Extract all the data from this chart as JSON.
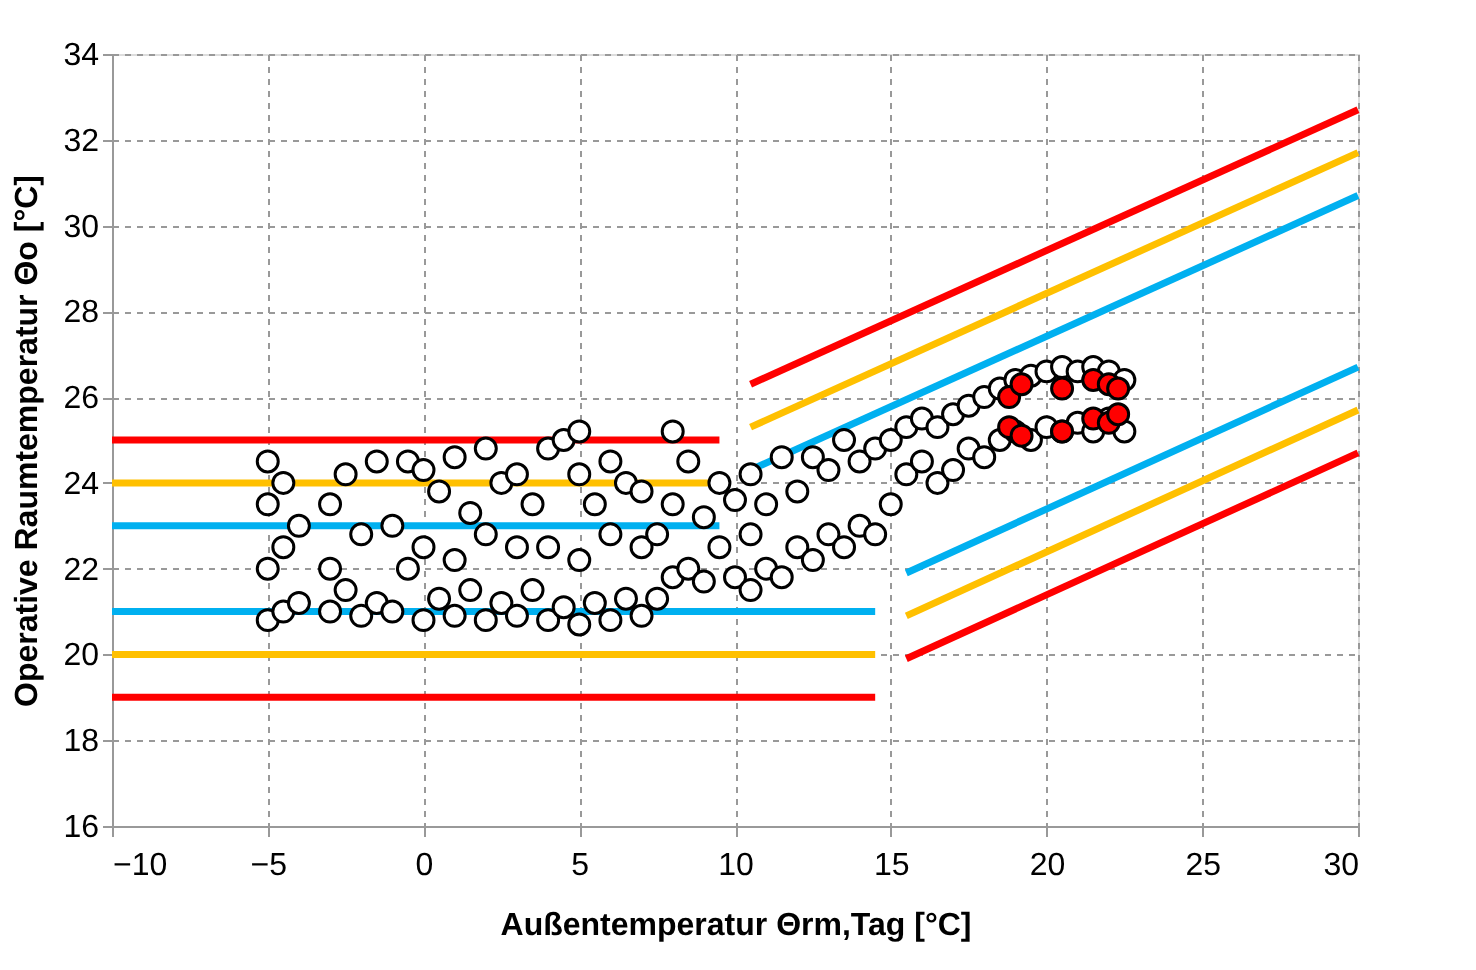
{
  "chart_data": {
    "type": "scatter",
    "xlabel": "Außentemperatur Θrm,Tag [°C]",
    "ylabel": "Operative Raumtemperatur Θo [°C]",
    "xlim": [
      -10,
      30
    ],
    "xticks": [
      -10,
      -5,
      0,
      5,
      10,
      15,
      20,
      25,
      30
    ],
    "ylim": [
      16,
      34
    ],
    "yticks": [
      16,
      18,
      20,
      22,
      24,
      26,
      28,
      30,
      32,
      34
    ],
    "grid": true,
    "marker": "circle",
    "series": [
      {
        "type": "line",
        "color": "#ff0000",
        "x": [
          -10,
          9.5
        ],
        "values": [
          25,
          25
        ],
        "marker": "none"
      },
      {
        "type": "line",
        "color": "#ffc000",
        "x": [
          -10,
          9.5
        ],
        "values": [
          24,
          24
        ],
        "marker": "none"
      },
      {
        "type": "line",
        "color": "#00b0f0",
        "x": [
          -10,
          9.5
        ],
        "values": [
          23,
          23
        ],
        "marker": "none"
      },
      {
        "type": "line",
        "color": "#00b0f0",
        "x": [
          -10,
          14.5
        ],
        "values": [
          21,
          21
        ],
        "marker": "none"
      },
      {
        "type": "line",
        "color": "#ffc000",
        "x": [
          -10,
          14.5
        ],
        "values": [
          20,
          20
        ],
        "marker": "none"
      },
      {
        "type": "line",
        "color": "#ff0000",
        "x": [
          -10,
          14.5
        ],
        "values": [
          19,
          19
        ],
        "marker": "none"
      },
      {
        "type": "line",
        "color": "#ff0000",
        "x": [
          10.5,
          30
        ],
        "values": [
          26.3,
          32.7
        ],
        "marker": "none"
      },
      {
        "type": "line",
        "color": "#ffc000",
        "x": [
          10.5,
          30
        ],
        "values": [
          25.3,
          31.7
        ],
        "marker": "none"
      },
      {
        "type": "line",
        "color": "#00b0f0",
        "x": [
          10.5,
          30
        ],
        "values": [
          24.3,
          30.7
        ],
        "marker": "none"
      },
      {
        "type": "line",
        "color": "#00b0f0",
        "x": [
          15.5,
          30
        ],
        "values": [
          21.9,
          26.7
        ],
        "marker": "none"
      },
      {
        "type": "line",
        "color": "#ffc000",
        "x": [
          15.5,
          30
        ],
        "values": [
          20.9,
          25.7
        ],
        "marker": "none"
      },
      {
        "type": "line",
        "color": "#ff0000",
        "x": [
          15.5,
          30
        ],
        "values": [
          19.9,
          24.7
        ],
        "marker": "none"
      },
      {
        "color": "#ffffff",
        "x": [
          -5,
          -5,
          -5,
          -5,
          -4.5,
          -4.5,
          -4.5,
          -4,
          -4,
          -3,
          -3,
          -3,
          -2.5,
          -2.5,
          -2,
          -2,
          -1.5,
          -1.5,
          -1,
          -1,
          -0.5,
          -0.5,
          0,
          0,
          0,
          0.5,
          0.5,
          1,
          1,
          1,
          1.5,
          1.5,
          2,
          2,
          2,
          2.5,
          2.5,
          3,
          3,
          3,
          3.5,
          3.5,
          4,
          4,
          4,
          4.5,
          4.5,
          5,
          5,
          5,
          5,
          5.5,
          5.5,
          6,
          6,
          6,
          6.5,
          6.5,
          7,
          7,
          7,
          7.5,
          7.5,
          8,
          8,
          8,
          8.5,
          8.5,
          9,
          9,
          9.5,
          9.5,
          10,
          10,
          10.5,
          10.5,
          10.5,
          11,
          11,
          11.5,
          11.5,
          12,
          12,
          12.5,
          12.5,
          13,
          13,
          13.5,
          13.5,
          14,
          14,
          14.5,
          14.5,
          15,
          15,
          15.5,
          15.5,
          16,
          16,
          16.5,
          16.5,
          17,
          17,
          17.5,
          17.5,
          18,
          18,
          18.5,
          18.5,
          19,
          19,
          19.5,
          19.5,
          20,
          20,
          20.5,
          20.5,
          21,
          21,
          21.5,
          21.5,
          22,
          22,
          22.5,
          22.5
        ],
        "values": [
          20.8,
          22,
          23.5,
          24.5,
          21,
          22.5,
          24,
          21.2,
          23,
          21,
          22,
          23.5,
          21.5,
          24.2,
          20.9,
          22.8,
          21.2,
          24.5,
          21,
          23,
          22,
          24.5,
          20.8,
          22.5,
          24.3,
          21.3,
          23.8,
          20.9,
          22.2,
          24.6,
          21.5,
          23.3,
          20.8,
          22.8,
          24.8,
          21.2,
          24,
          20.9,
          22.5,
          24.2,
          21.5,
          23.5,
          20.8,
          22.5,
          24.8,
          21.1,
          25,
          20.7,
          22.2,
          24.2,
          25.2,
          21.2,
          23.5,
          20.8,
          22.8,
          24.5,
          21.3,
          24,
          20.9,
          22.5,
          23.8,
          21.3,
          22.8,
          21.8,
          23.5,
          25.2,
          22,
          24.5,
          21.7,
          23.2,
          22.5,
          24,
          21.8,
          23.6,
          21.5,
          22.8,
          24.2,
          22,
          23.5,
          21.8,
          24.6,
          22.5,
          23.8,
          22.2,
          24.6,
          22.8,
          24.3,
          22.5,
          25,
          23,
          24.5,
          22.8,
          24.8,
          23.5,
          25,
          24.2,
          25.3,
          24.5,
          25.5,
          24,
          25.3,
          24.3,
          25.6,
          24.8,
          25.8,
          24.6,
          26,
          25,
          26.2,
          25.2,
          26.4,
          25,
          26.5,
          25.3,
          26.6,
          25.2,
          26.7,
          25.4,
          26.6,
          25.2,
          26.7,
          25.5,
          26.6,
          25.2,
          26.4
        ]
      },
      {
        "color": "#ff0000",
        "x": [
          18.8,
          18.8,
          19.2,
          19.2,
          20.5,
          20.5,
          21.5,
          21.5,
          22,
          22,
          22.3,
          22.3
        ],
        "values": [
          25.3,
          26.0,
          25.1,
          26.3,
          25.2,
          26.2,
          25.5,
          26.4,
          25.4,
          26.3,
          25.6,
          26.2
        ]
      }
    ]
  }
}
